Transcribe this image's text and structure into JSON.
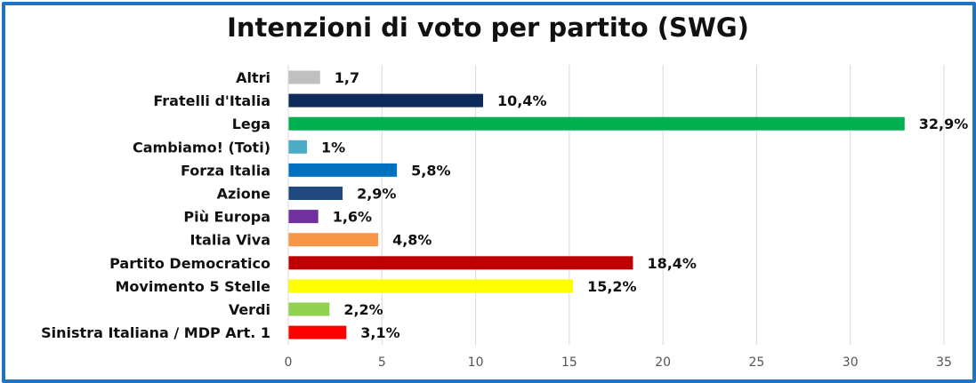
{
  "chart_data": {
    "type": "bar",
    "orientation": "horizontal",
    "title": "Intenzioni di voto per partito (SWG)",
    "xlim": [
      0,
      35
    ],
    "xticks": [
      "0",
      "5",
      "10",
      "15",
      "20",
      "25",
      "30",
      "35"
    ],
    "grid": true,
    "legend": "none",
    "categories": [
      "Altri",
      "Fratelli d'Italia",
      "Lega",
      "Cambiamo! (Toti)",
      "Forza Italia",
      "Azione",
      "Più Europa",
      "Italia Viva",
      "Partito Democratico",
      "Movimento 5 Stelle",
      "Verdi",
      "Sinistra Italiana / MDP Art. 1"
    ],
    "values": [
      1.7,
      10.4,
      32.9,
      1,
      5.8,
      2.9,
      1.6,
      4.8,
      18.4,
      15.2,
      2.2,
      3.1
    ],
    "value_labels": [
      "1,7",
      "10,4%",
      "32,9%",
      "1%",
      "5,8%",
      "2,9%",
      "1,6%",
      "4,8%",
      "18,4%",
      "15,2%",
      "2,2%",
      "3,1%"
    ],
    "colors": [
      "#c0c0c0",
      "#0c2a5c",
      "#00b050",
      "#4bacc6",
      "#0070c0",
      "#1f497d",
      "#7030a0",
      "#f79646",
      "#c00000",
      "#ffff00",
      "#92d050",
      "#ff0000"
    ]
  }
}
